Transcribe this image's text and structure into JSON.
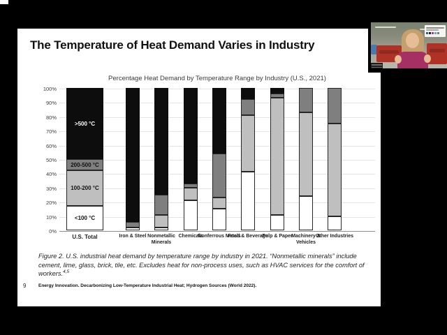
{
  "slide": {
    "title": "The Temperature of Heat Demand Varies in Industry",
    "page_number": "9",
    "footnote": "Energy Innovation. Decarbonizing Low-Temperature Industrial Heat; Hydrogen Sources (World 2022).",
    "caption": {
      "text": "Figure 2. U.S. industrial heat demand by temperature range by industry in 2021. “Nonmetallic minerals” include cement, lime, glass, brick, tile, etc. Excludes heat for non-process uses, such as HVAC services for the comfort of workers.",
      "superscript": "4,5"
    }
  },
  "chart_data": {
    "type": "bar",
    "stacked": true,
    "title": "Percentage Heat Demand by Temperature Range by Industry (U.S., 2021)",
    "categories": [
      "U.S. Total",
      "Iron & Steel",
      "Nonmetallic Minerals",
      "Chemicals",
      "Nonferrous Metals",
      "Food & Beverage",
      "Pulp & Paper",
      "Machinery & Vehicles",
      "Other Industries"
    ],
    "series": [
      {
        "name": "<100 °C",
        "color": "#ffffff",
        "label_color": "#111111",
        "values": [
          17,
          2,
          2,
          21,
          15,
          41,
          11,
          24,
          10
        ]
      },
      {
        "name": "100-200 °C",
        "color": "#bfbfbf",
        "label_color": "#111111",
        "values": [
          25,
          0,
          9,
          9,
          8,
          40,
          82,
          59,
          65
        ]
      },
      {
        "name": "200-500 °C",
        "color": "#7f7f7f",
        "label_color": "#111111",
        "values": [
          8,
          4,
          14,
          3,
          31,
          11,
          3,
          17,
          25
        ]
      },
      {
        "name": ">500 °C",
        "color": "#0d0d0d",
        "label_color": "#ffffff",
        "values": [
          50,
          94,
          75,
          67,
          46,
          8,
          4,
          0,
          0
        ]
      }
    ],
    "ylabel": "",
    "xlabel": "",
    "ylim": [
      0,
      100
    ],
    "ytick_step": 10,
    "ytick_suffix": "%",
    "grid": true,
    "legend": "labels inside U.S. Total bar",
    "labeled_category_index": 0
  },
  "webcam": {
    "description": "speaker video feed",
    "shirt_color": "#a62f63",
    "machinery_color": "#b03226"
  }
}
